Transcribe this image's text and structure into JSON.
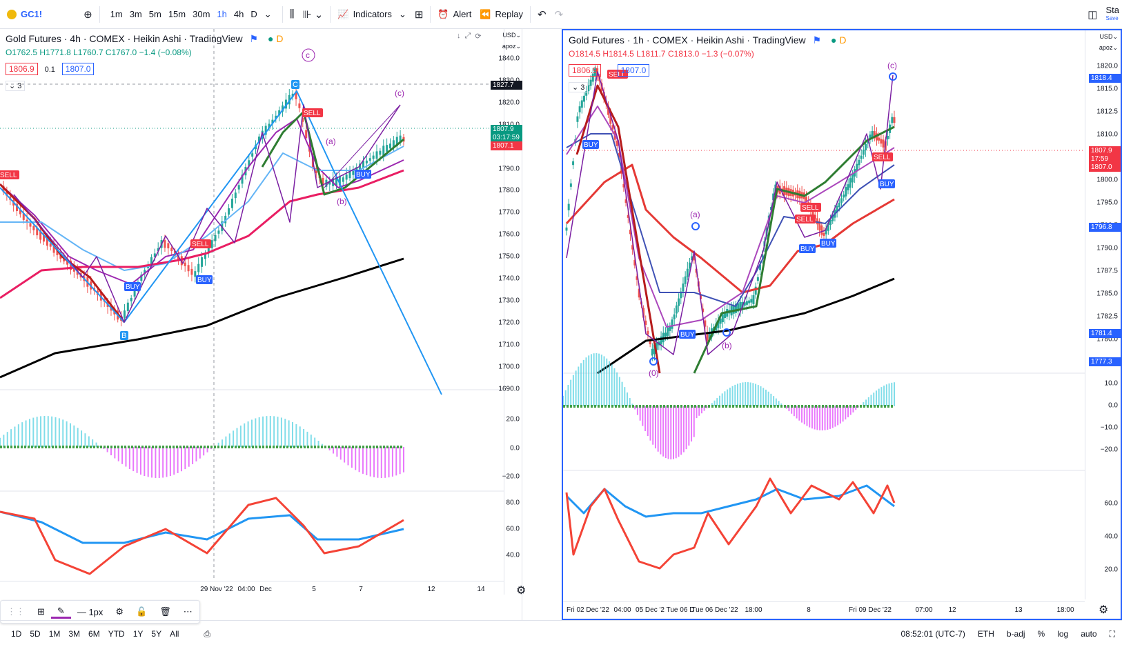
{
  "toolbar": {
    "symbol": "GC1!",
    "intervals": [
      "1m",
      "3m",
      "5m",
      "15m",
      "30m",
      "1h",
      "4h",
      "D"
    ],
    "active_interval": "1h",
    "indicators_label": "Indicators",
    "alert_label": "Alert",
    "replay_label": "Replay",
    "save_label": "Sta",
    "save_sub": "Save"
  },
  "left_chart": {
    "title": "Gold Futures · 4h · COMEX · Heikin Ashi · TradingView",
    "ohlc": {
      "o": "O1762.5",
      "h": "H1771.8",
      "l": "L1760.7",
      "c": "C1767.0",
      "chg": "−1.4 (−0.08%)"
    },
    "bid": "1806.9",
    "spread": "0.1",
    "ask": "1807.0",
    "layer_count": "3",
    "currency": "USD",
    "scale_mode": "apoz",
    "price_ticks": [
      "1840.0",
      "1830.0",
      "1820.0",
      "1810.0",
      "1800.0",
      "1790.0",
      "1780.0",
      "1770.0",
      "1760.0",
      "1750.0",
      "1740.0",
      "1730.0",
      "1720.0",
      "1710.0",
      "1700.0",
      "1690.0"
    ],
    "crosshair_price": "1827.7",
    "last_price": "1807.9",
    "countdown": "03:17:59",
    "bid_price": "1807.1",
    "osc1_ticks": [
      "20.0",
      "0.0",
      "−20.0"
    ],
    "osc2_ticks": [
      "80.0",
      "60.0",
      "40.0"
    ],
    "time_labels": [
      "29 Nov '22",
      "04:00",
      "Dec",
      "5",
      "7",
      "12",
      "14"
    ],
    "wave_labels": {
      "top_circle": "c",
      "C": "C",
      "B": "B",
      "a": "(a)",
      "b": "(b)",
      "c": "(c)"
    },
    "signals": [
      "SELL",
      "BUY",
      "SELL",
      "BUY",
      "SELL",
      "BUY"
    ]
  },
  "right_chart": {
    "title": "Gold Futures · 1h · COMEX · Heikin Ashi · TradingView",
    "ohlc": {
      "o": "O1814.5",
      "h": "H1814.5",
      "l": "L1811.7",
      "c": "C1813.0",
      "chg": "−1.3 (−0.07%)"
    },
    "bid": "1806.9",
    "ask": "1807.0",
    "layer_count": "3",
    "currency": "USD",
    "scale_mode": "apoz",
    "price_ticks": [
      "1820.0",
      "1815.0",
      "1812.5",
      "1810.0",
      "1802.5",
      "1800.0",
      "1795.0",
      "1792.5",
      "1790.0",
      "1787.5",
      "1785.0",
      "1782.5",
      "1780.0"
    ],
    "box_18184": "1818.4",
    "box_last": "1807.9",
    "countdown": "17:59",
    "bid_price": "1807.0",
    "box_17968": "1796.8",
    "box_17814": "1781.4",
    "box_17773": "1777.3",
    "osc1_ticks": [
      "10.0",
      "0.0",
      "−10.0",
      "−20.0"
    ],
    "osc2_ticks": [
      "60.0",
      "40.0",
      "20.0"
    ],
    "time_labels": [
      "Fri 02 Dec '22",
      "04:00",
      "05 Dec '2",
      "Tue 06 D",
      "Tue 06 Dec '22",
      "18:00",
      "8",
      "Fri 09 Dec '22",
      "07:00",
      "12",
      "13",
      "18:00"
    ],
    "wave_labels": {
      "a": "(a)",
      "b": "(b)",
      "c": "(c)",
      "zero": "(0)"
    },
    "signals": [
      "SELL",
      "BUY",
      "SELL",
      "SELL",
      "BUY",
      "BUY",
      "BUY",
      "SELL",
      "BUY"
    ]
  },
  "bottom": {
    "ranges": [
      "1D",
      "5D",
      "1M",
      "3M",
      "6M",
      "YTD",
      "1Y",
      "5Y",
      "All"
    ],
    "clock": "08:52:01 (UTC-7)",
    "session": "ETH",
    "adj": "b-adj",
    "pct": "%",
    "log": "log",
    "auto": "auto"
  },
  "drawing_toolbar": {
    "width_label": "1px"
  },
  "colors": {
    "accent": "#2962ff",
    "up": "#089981",
    "down": "#f23645",
    "ma_black": "#000000",
    "ma_red": "#e91e63",
    "purple": "#9c27b0"
  }
}
